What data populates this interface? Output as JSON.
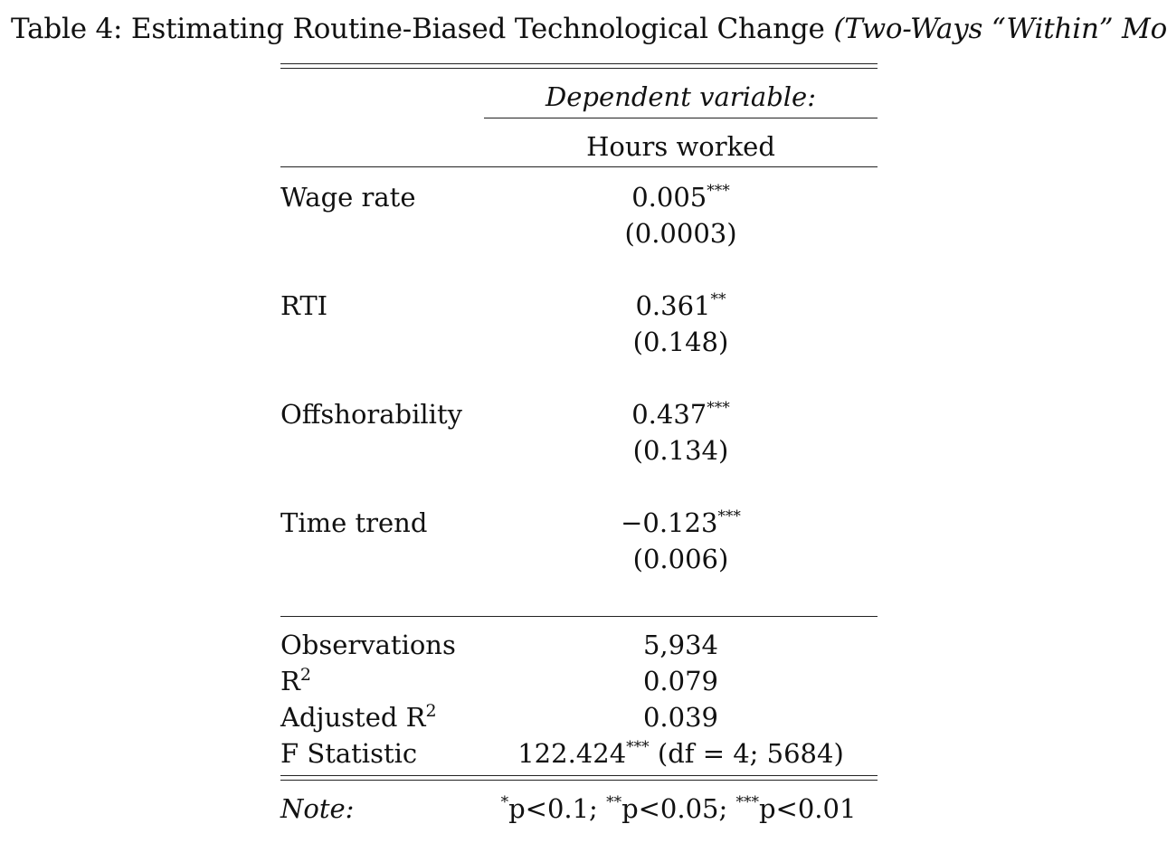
{
  "caption": {
    "prefix": "Table 4: Estimating Routine-Biased Technological Change ",
    "italic": "(Two-Ways “Within” Model)"
  },
  "header": {
    "dependent_variable": "Dependent variable:",
    "column": "Hours worked"
  },
  "rows": [
    {
      "label": "Wage rate",
      "coef": "0.005",
      "stars": "***",
      "se": "(0.0003)"
    },
    {
      "label": "RTI",
      "coef": "0.361",
      "stars": "**",
      "se": "(0.148)"
    },
    {
      "label": "Offshorability",
      "coef": "0.437",
      "stars": "***",
      "se": "(0.134)"
    },
    {
      "label": "Time trend",
      "coef": "−0.123",
      "stars": "***",
      "se": "(0.006)"
    }
  ],
  "stats": {
    "observations": {
      "label": "Observations",
      "value": "5,934"
    },
    "r2": {
      "label": "R",
      "sup": "2",
      "value": "0.079"
    },
    "adj_r2": {
      "label": "Adjusted R",
      "sup": "2",
      "value": "0.039"
    },
    "f_stat": {
      "label": "F Statistic",
      "value": "122.424",
      "stars": "***",
      "rest": " (df = 4; 5684)"
    }
  },
  "note": {
    "label": "Note:",
    "s1": "*",
    "t1": "p<0.1; ",
    "s2": "**",
    "t2": "p<0.05; ",
    "s3": "***",
    "t3": "p<0.01"
  }
}
